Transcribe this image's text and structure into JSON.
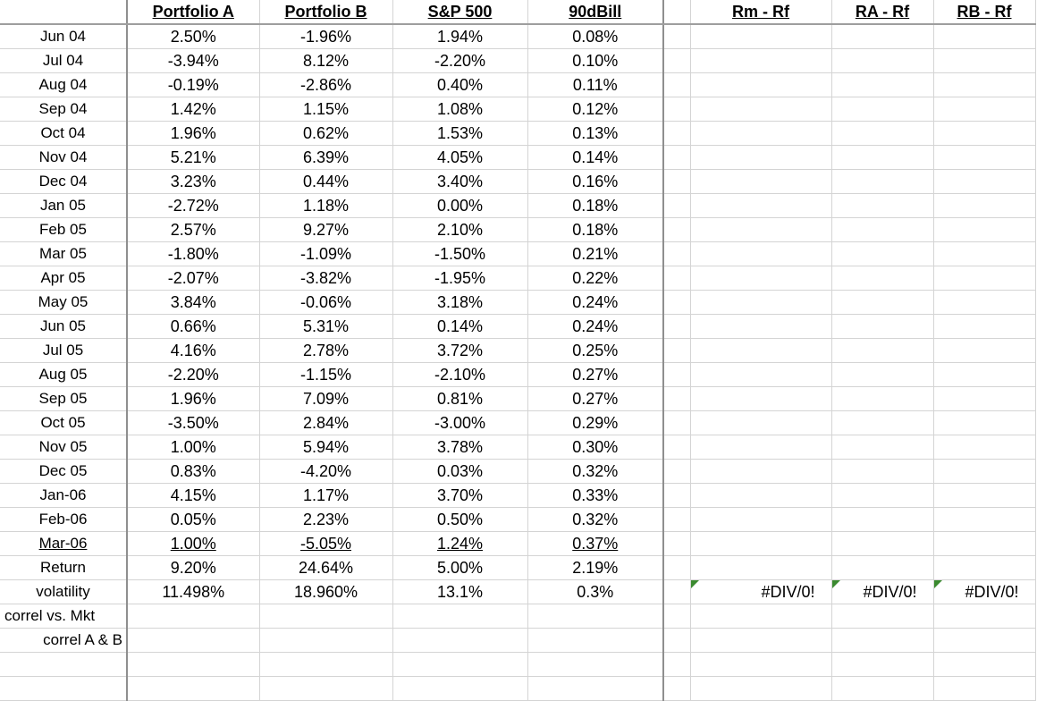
{
  "headers": [
    "",
    "Portfolio A",
    "Portfolio B",
    "S&P 500",
    "90dBill",
    "",
    "Rm - Rf",
    "RA - Rf",
    "RB - Rf"
  ],
  "rows": [
    {
      "label": "Jun 04",
      "a": "2.50%",
      "b": "-1.96%",
      "sp": "1.94%",
      "bill": "0.08%"
    },
    {
      "label": "Jul 04",
      "a": "-3.94%",
      "b": "8.12%",
      "sp": "-2.20%",
      "bill": "0.10%"
    },
    {
      "label": "Aug 04",
      "a": "-0.19%",
      "b": "-2.86%",
      "sp": "0.40%",
      "bill": "0.11%"
    },
    {
      "label": "Sep 04",
      "a": "1.42%",
      "b": "1.15%",
      "sp": "1.08%",
      "bill": "0.12%"
    },
    {
      "label": "Oct 04",
      "a": "1.96%",
      "b": "0.62%",
      "sp": "1.53%",
      "bill": "0.13%"
    },
    {
      "label": "Nov 04",
      "a": "5.21%",
      "b": "6.39%",
      "sp": "4.05%",
      "bill": "0.14%"
    },
    {
      "label": "Dec 04",
      "a": "3.23%",
      "b": "0.44%",
      "sp": "3.40%",
      "bill": "0.16%"
    },
    {
      "label": "Jan 05",
      "a": "-2.72%",
      "b": "1.18%",
      "sp": "0.00%",
      "bill": "0.18%"
    },
    {
      "label": "Feb 05",
      "a": "2.57%",
      "b": "9.27%",
      "sp": "2.10%",
      "bill": "0.18%"
    },
    {
      "label": "Mar 05",
      "a": "-1.80%",
      "b": "-1.09%",
      "sp": "-1.50%",
      "bill": "0.21%"
    },
    {
      "label": "Apr 05",
      "a": "-2.07%",
      "b": "-3.82%",
      "sp": "-1.95%",
      "bill": "0.22%"
    },
    {
      "label": "May 05",
      "a": "3.84%",
      "b": "-0.06%",
      "sp": "3.18%",
      "bill": "0.24%"
    },
    {
      "label": "Jun 05",
      "a": "0.66%",
      "b": "5.31%",
      "sp": "0.14%",
      "bill": "0.24%"
    },
    {
      "label": "Jul 05",
      "a": "4.16%",
      "b": "2.78%",
      "sp": "3.72%",
      "bill": "0.25%"
    },
    {
      "label": "Aug 05",
      "a": "-2.20%",
      "b": "-1.15%",
      "sp": "-2.10%",
      "bill": "0.27%"
    },
    {
      "label": "Sep 05",
      "a": "1.96%",
      "b": "7.09%",
      "sp": "0.81%",
      "bill": "0.27%"
    },
    {
      "label": "Oct 05",
      "a": "-3.50%",
      "b": "2.84%",
      "sp": "-3.00%",
      "bill": "0.29%"
    },
    {
      "label": "Nov 05",
      "a": "1.00%",
      "b": "5.94%",
      "sp": "3.78%",
      "bill": "0.30%"
    },
    {
      "label": "Dec 05",
      "a": "0.83%",
      "b": "-4.20%",
      "sp": "0.03%",
      "bill": "0.32%"
    },
    {
      "label": "Jan-06",
      "a": "4.15%",
      "b": "1.17%",
      "sp": "3.70%",
      "bill": "0.33%"
    },
    {
      "label": "Feb-06",
      "a": "0.05%",
      "b": "2.23%",
      "sp": "0.50%",
      "bill": "0.32%"
    },
    {
      "label": "Mar-06",
      "a": "1.00%",
      "b": "-5.05%",
      "sp": "1.24%",
      "bill": "0.37%",
      "underline": true
    }
  ],
  "return_row": {
    "label": "Return",
    "a": "9.20%",
    "b": "24.64%",
    "sp": "5.00%",
    "bill": "2.19%"
  },
  "volatility_row": {
    "label": "volatility",
    "a": "11.498%",
    "b": "18.960%",
    "sp": "13.1%",
    "bill": "0.3%",
    "rm_rf": "#DIV/0!",
    "ra_rf": "#DIV/0!",
    "rb_rf": "#DIV/0!"
  },
  "correl_mkt_label": "correl vs. Mkt",
  "correl_ab_label": "correl A & B",
  "colors": {
    "gridline": "#d4d4d4",
    "error_indicator": "#3a8a2f"
  }
}
